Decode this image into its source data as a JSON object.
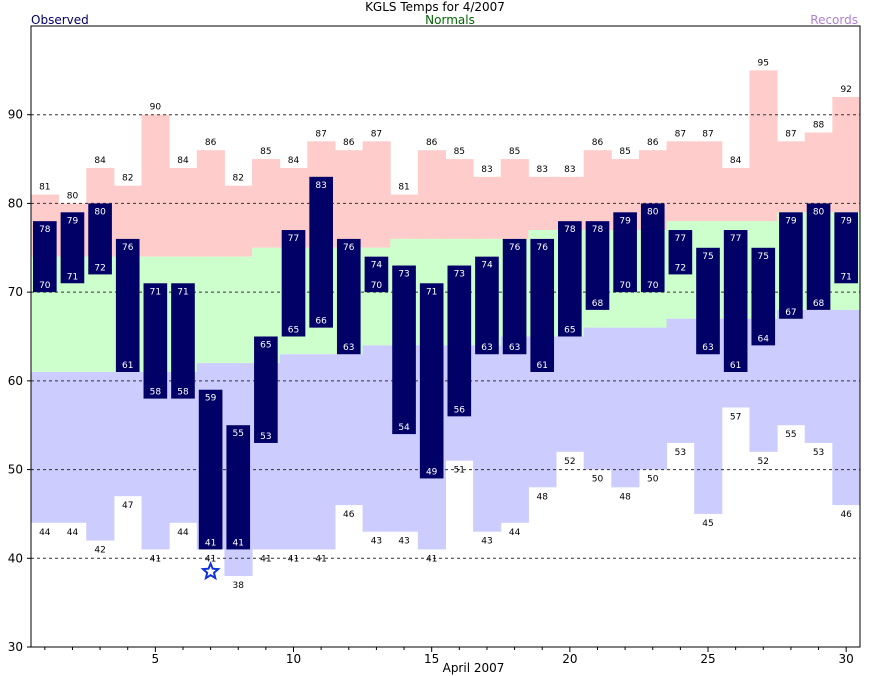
{
  "title": "KGLS Temps for 4/2007",
  "legend": {
    "observed": "Observed",
    "normals": "Normals",
    "records": "Records"
  },
  "colors": {
    "observed_bar": "#000066",
    "normal_band": "#ccffcc",
    "record_high_band": "#ffcccc",
    "record_low_band": "#ccccff",
    "star": "#1133dd",
    "grid": "#333333"
  },
  "chart_data": {
    "type": "bar",
    "xlabel": "April 2007",
    "ylim": [
      30,
      100
    ],
    "yticks": [
      30,
      40,
      50,
      60,
      70,
      80,
      90
    ],
    "xticks": [
      5,
      10,
      15,
      20,
      25,
      30
    ],
    "grid": "horizontal dashed at 40, 50, 60, 70, 80, 90",
    "days": [
      1,
      2,
      3,
      4,
      5,
      6,
      7,
      8,
      9,
      10,
      11,
      12,
      13,
      14,
      15,
      16,
      17,
      18,
      19,
      20,
      21,
      22,
      23,
      24,
      25,
      26,
      27,
      28,
      29,
      30
    ],
    "observed_high": [
      78,
      79,
      80,
      76,
      71,
      71,
      59,
      55,
      65,
      77,
      83,
      76,
      74,
      73,
      71,
      73,
      74,
      76,
      76,
      78,
      78,
      79,
      80,
      77,
      75,
      77,
      75,
      79,
      80,
      79
    ],
    "observed_low": [
      70,
      71,
      72,
      61,
      58,
      58,
      41,
      41,
      53,
      65,
      66,
      63,
      70,
      54,
      49,
      56,
      63,
      63,
      61,
      65,
      68,
      70,
      70,
      72,
      63,
      61,
      64,
      67,
      68,
      71
    ],
    "record_high": [
      81,
      80,
      84,
      82,
      90,
      84,
      86,
      82,
      85,
      84,
      87,
      86,
      87,
      81,
      86,
      85,
      83,
      85,
      83,
      83,
      86,
      85,
      86,
      87,
      87,
      84,
      95,
      87,
      88,
      92
    ],
    "record_low": [
      44,
      44,
      42,
      47,
      41,
      44,
      41,
      38,
      41,
      41,
      41,
      46,
      43,
      43,
      41,
      51,
      43,
      44,
      48,
      52,
      50,
      48,
      50,
      53,
      45,
      57,
      52,
      55,
      53,
      46
    ],
    "normal_high": [
      74,
      74,
      74,
      74,
      74,
      74,
      74,
      74,
      75,
      75,
      75,
      75,
      75,
      76,
      76,
      76,
      76,
      76,
      77,
      77,
      77,
      77,
      77,
      78,
      78,
      78,
      78,
      79,
      79,
      79
    ],
    "normal_low": [
      61,
      61,
      61,
      61,
      61,
      61,
      62,
      62,
      62,
      63,
      63,
      63,
      64,
      64,
      64,
      64,
      64,
      65,
      65,
      65,
      66,
      66,
      66,
      67,
      67,
      67,
      67,
      68,
      68,
      68
    ],
    "record_low_set_marker": {
      "day": 7,
      "value": 38.5,
      "symbol": "star"
    }
  }
}
